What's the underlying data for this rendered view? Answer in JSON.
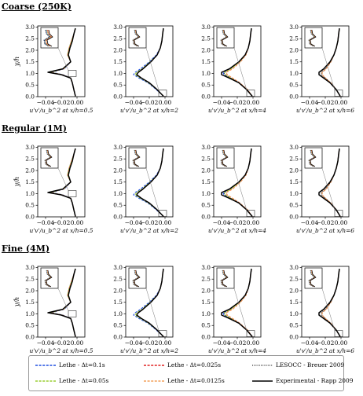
{
  "rows": [
    {
      "title": "Coarse (250K)"
    },
    {
      "title": "Regular (1M)"
    },
    {
      "title": "Fine (4M)"
    }
  ],
  "panel_xlabels": [
    "u'v'/u_b^2 at x/h=0.5",
    "u'v'/u_b^2 at x/h=2",
    "u'v'/u_b^2 at x/h=4",
    "u'v'/u_b^2 at x/h=6"
  ],
  "ylabel": "y/h",
  "legend": [
    {
      "label": "Lethe - Δt=0.1s",
      "color": "#1f4fe0",
      "style": "dashed"
    },
    {
      "label": "Lethe - Δt=0.05s",
      "color": "#9acd32",
      "style": "dashed"
    },
    {
      "label": "Lethe - Δt=0.025s",
      "color": "#e02020",
      "style": "dashed"
    },
    {
      "label": "Lethe - Δt=0.0125s",
      "color": "#f4a05a",
      "style": "dashed"
    },
    {
      "label": "LESOCC - Breuer 2009",
      "color": "#000000",
      "style": "dotted"
    },
    {
      "label": "Experimental - Rapp 2009",
      "color": "#000000",
      "style": "solid"
    }
  ],
  "chart_data": {
    "type": "line",
    "grid": false,
    "xlim": [
      -0.05,
      0.01
    ],
    "ylim": [
      0.0,
      3.05
    ],
    "xticks": [
      "−0.04",
      "−0.02",
      "0.00"
    ],
    "yticks": [
      "0.0",
      "0.5",
      "1.0",
      "1.5",
      "2.0",
      "2.5",
      "3.0"
    ],
    "y": [
      0.02,
      0.3,
      0.6,
      0.8,
      0.95,
      1.05,
      1.2,
      1.5,
      1.8,
      2.1,
      2.4,
      2.7,
      2.95
    ],
    "profiles": [
      {
        "station": "x/h=0.5",
        "series": {
          "exp": [
            -0.002,
            -0.004,
            -0.006,
            -0.008,
            -0.02,
            -0.037,
            -0.018,
            -0.008,
            -0.011,
            -0.009,
            -0.006,
            -0.004,
            -0.002
          ],
          "les": [
            -0.002,
            -0.004,
            -0.006,
            -0.008,
            -0.019,
            -0.036,
            -0.017,
            -0.008,
            -0.012,
            -0.01,
            -0.007,
            -0.004,
            -0.002
          ],
          "dt01": [
            -0.002,
            -0.004,
            -0.006,
            -0.008,
            -0.018,
            -0.033,
            -0.016,
            -0.008,
            -0.012,
            -0.01,
            -0.007,
            -0.004,
            -0.002
          ],
          "dt005": [
            -0.002,
            -0.004,
            -0.006,
            -0.008,
            -0.019,
            -0.034,
            -0.017,
            -0.008,
            -0.012,
            -0.01,
            -0.007,
            -0.004,
            -0.002
          ],
          "dt0025": [
            -0.002,
            -0.004,
            -0.006,
            -0.008,
            -0.019,
            -0.035,
            -0.017,
            -0.008,
            -0.012,
            -0.01,
            -0.007,
            -0.004,
            -0.002
          ],
          "dt00125": [
            -0.002,
            -0.004,
            -0.006,
            -0.008,
            -0.019,
            -0.035,
            -0.017,
            -0.008,
            -0.012,
            -0.01,
            -0.007,
            -0.004,
            -0.002
          ]
        }
      },
      {
        "station": "x/h=2",
        "series": {
          "exp": [
            -0.002,
            -0.01,
            -0.02,
            -0.03,
            -0.036,
            -0.034,
            -0.028,
            -0.018,
            -0.01,
            -0.006,
            -0.004,
            -0.003,
            -0.002
          ],
          "les": [
            -0.002,
            -0.01,
            -0.02,
            -0.03,
            -0.036,
            -0.034,
            -0.028,
            -0.018,
            -0.01,
            -0.006,
            -0.004,
            -0.003,
            -0.002
          ],
          "dt01": [
            -0.002,
            -0.011,
            -0.022,
            -0.033,
            -0.04,
            -0.038,
            -0.031,
            -0.02,
            -0.011,
            -0.006,
            -0.004,
            -0.003,
            -0.002
          ],
          "dt005": [
            -0.002,
            -0.01,
            -0.021,
            -0.031,
            -0.038,
            -0.036,
            -0.029,
            -0.019,
            -0.01,
            -0.006,
            -0.004,
            -0.003,
            -0.002
          ],
          "dt0025": [
            -0.002,
            -0.01,
            -0.02,
            -0.03,
            -0.036,
            -0.034,
            -0.028,
            -0.018,
            -0.01,
            -0.006,
            -0.004,
            -0.003,
            -0.002
          ],
          "dt00125": [
            -0.002,
            -0.01,
            -0.02,
            -0.03,
            -0.036,
            -0.034,
            -0.028,
            -0.018,
            -0.01,
            -0.006,
            -0.004,
            -0.003,
            -0.002
          ]
        }
      },
      {
        "station": "x/h=4",
        "series": {
          "exp": [
            -0.001,
            -0.008,
            -0.018,
            -0.03,
            -0.04,
            -0.04,
            -0.03,
            -0.018,
            -0.01,
            -0.006,
            -0.004,
            -0.003,
            -0.002
          ],
          "les": [
            -0.001,
            -0.008,
            -0.018,
            -0.028,
            -0.036,
            -0.037,
            -0.029,
            -0.018,
            -0.01,
            -0.006,
            -0.004,
            -0.003,
            -0.002
          ],
          "dt01": [
            -0.001,
            -0.008,
            -0.018,
            -0.029,
            -0.037,
            -0.038,
            -0.029,
            -0.018,
            -0.01,
            -0.006,
            -0.004,
            -0.003,
            -0.002
          ],
          "dt005": [
            -0.001,
            -0.008,
            -0.018,
            -0.028,
            -0.035,
            -0.036,
            -0.028,
            -0.017,
            -0.01,
            -0.006,
            -0.004,
            -0.003,
            -0.002
          ],
          "dt0025": [
            -0.001,
            -0.007,
            -0.017,
            -0.026,
            -0.033,
            -0.034,
            -0.026,
            -0.016,
            -0.009,
            -0.006,
            -0.004,
            -0.003,
            -0.002
          ],
          "dt00125": [
            -0.001,
            -0.007,
            -0.017,
            -0.026,
            -0.033,
            -0.034,
            -0.026,
            -0.016,
            -0.009,
            -0.006,
            -0.004,
            -0.003,
            -0.002
          ]
        }
      },
      {
        "station": "x/h=6",
        "series": {
          "exp": [
            -0.001,
            -0.006,
            -0.014,
            -0.022,
            -0.028,
            -0.028,
            -0.022,
            -0.014,
            -0.009,
            -0.006,
            -0.004,
            -0.003,
            -0.002
          ],
          "les": [
            -0.001,
            -0.006,
            -0.013,
            -0.02,
            -0.025,
            -0.025,
            -0.02,
            -0.013,
            -0.009,
            -0.006,
            -0.004,
            -0.003,
            -0.002
          ],
          "dt01": [
            -0.001,
            -0.006,
            -0.013,
            -0.02,
            -0.024,
            -0.024,
            -0.019,
            -0.013,
            -0.009,
            -0.006,
            -0.004,
            -0.003,
            -0.002
          ],
          "dt005": [
            -0.001,
            -0.006,
            -0.013,
            -0.02,
            -0.024,
            -0.024,
            -0.019,
            -0.013,
            -0.009,
            -0.006,
            -0.004,
            -0.003,
            -0.002
          ],
          "dt0025": [
            -0.001,
            -0.006,
            -0.013,
            -0.02,
            -0.024,
            -0.024,
            -0.019,
            -0.013,
            -0.009,
            -0.006,
            -0.004,
            -0.003,
            -0.002
          ],
          "dt00125": [
            -0.001,
            -0.006,
            -0.013,
            -0.02,
            -0.024,
            -0.024,
            -0.019,
            -0.013,
            -0.009,
            -0.006,
            -0.004,
            -0.003,
            -0.002
          ]
        }
      }
    ]
  }
}
